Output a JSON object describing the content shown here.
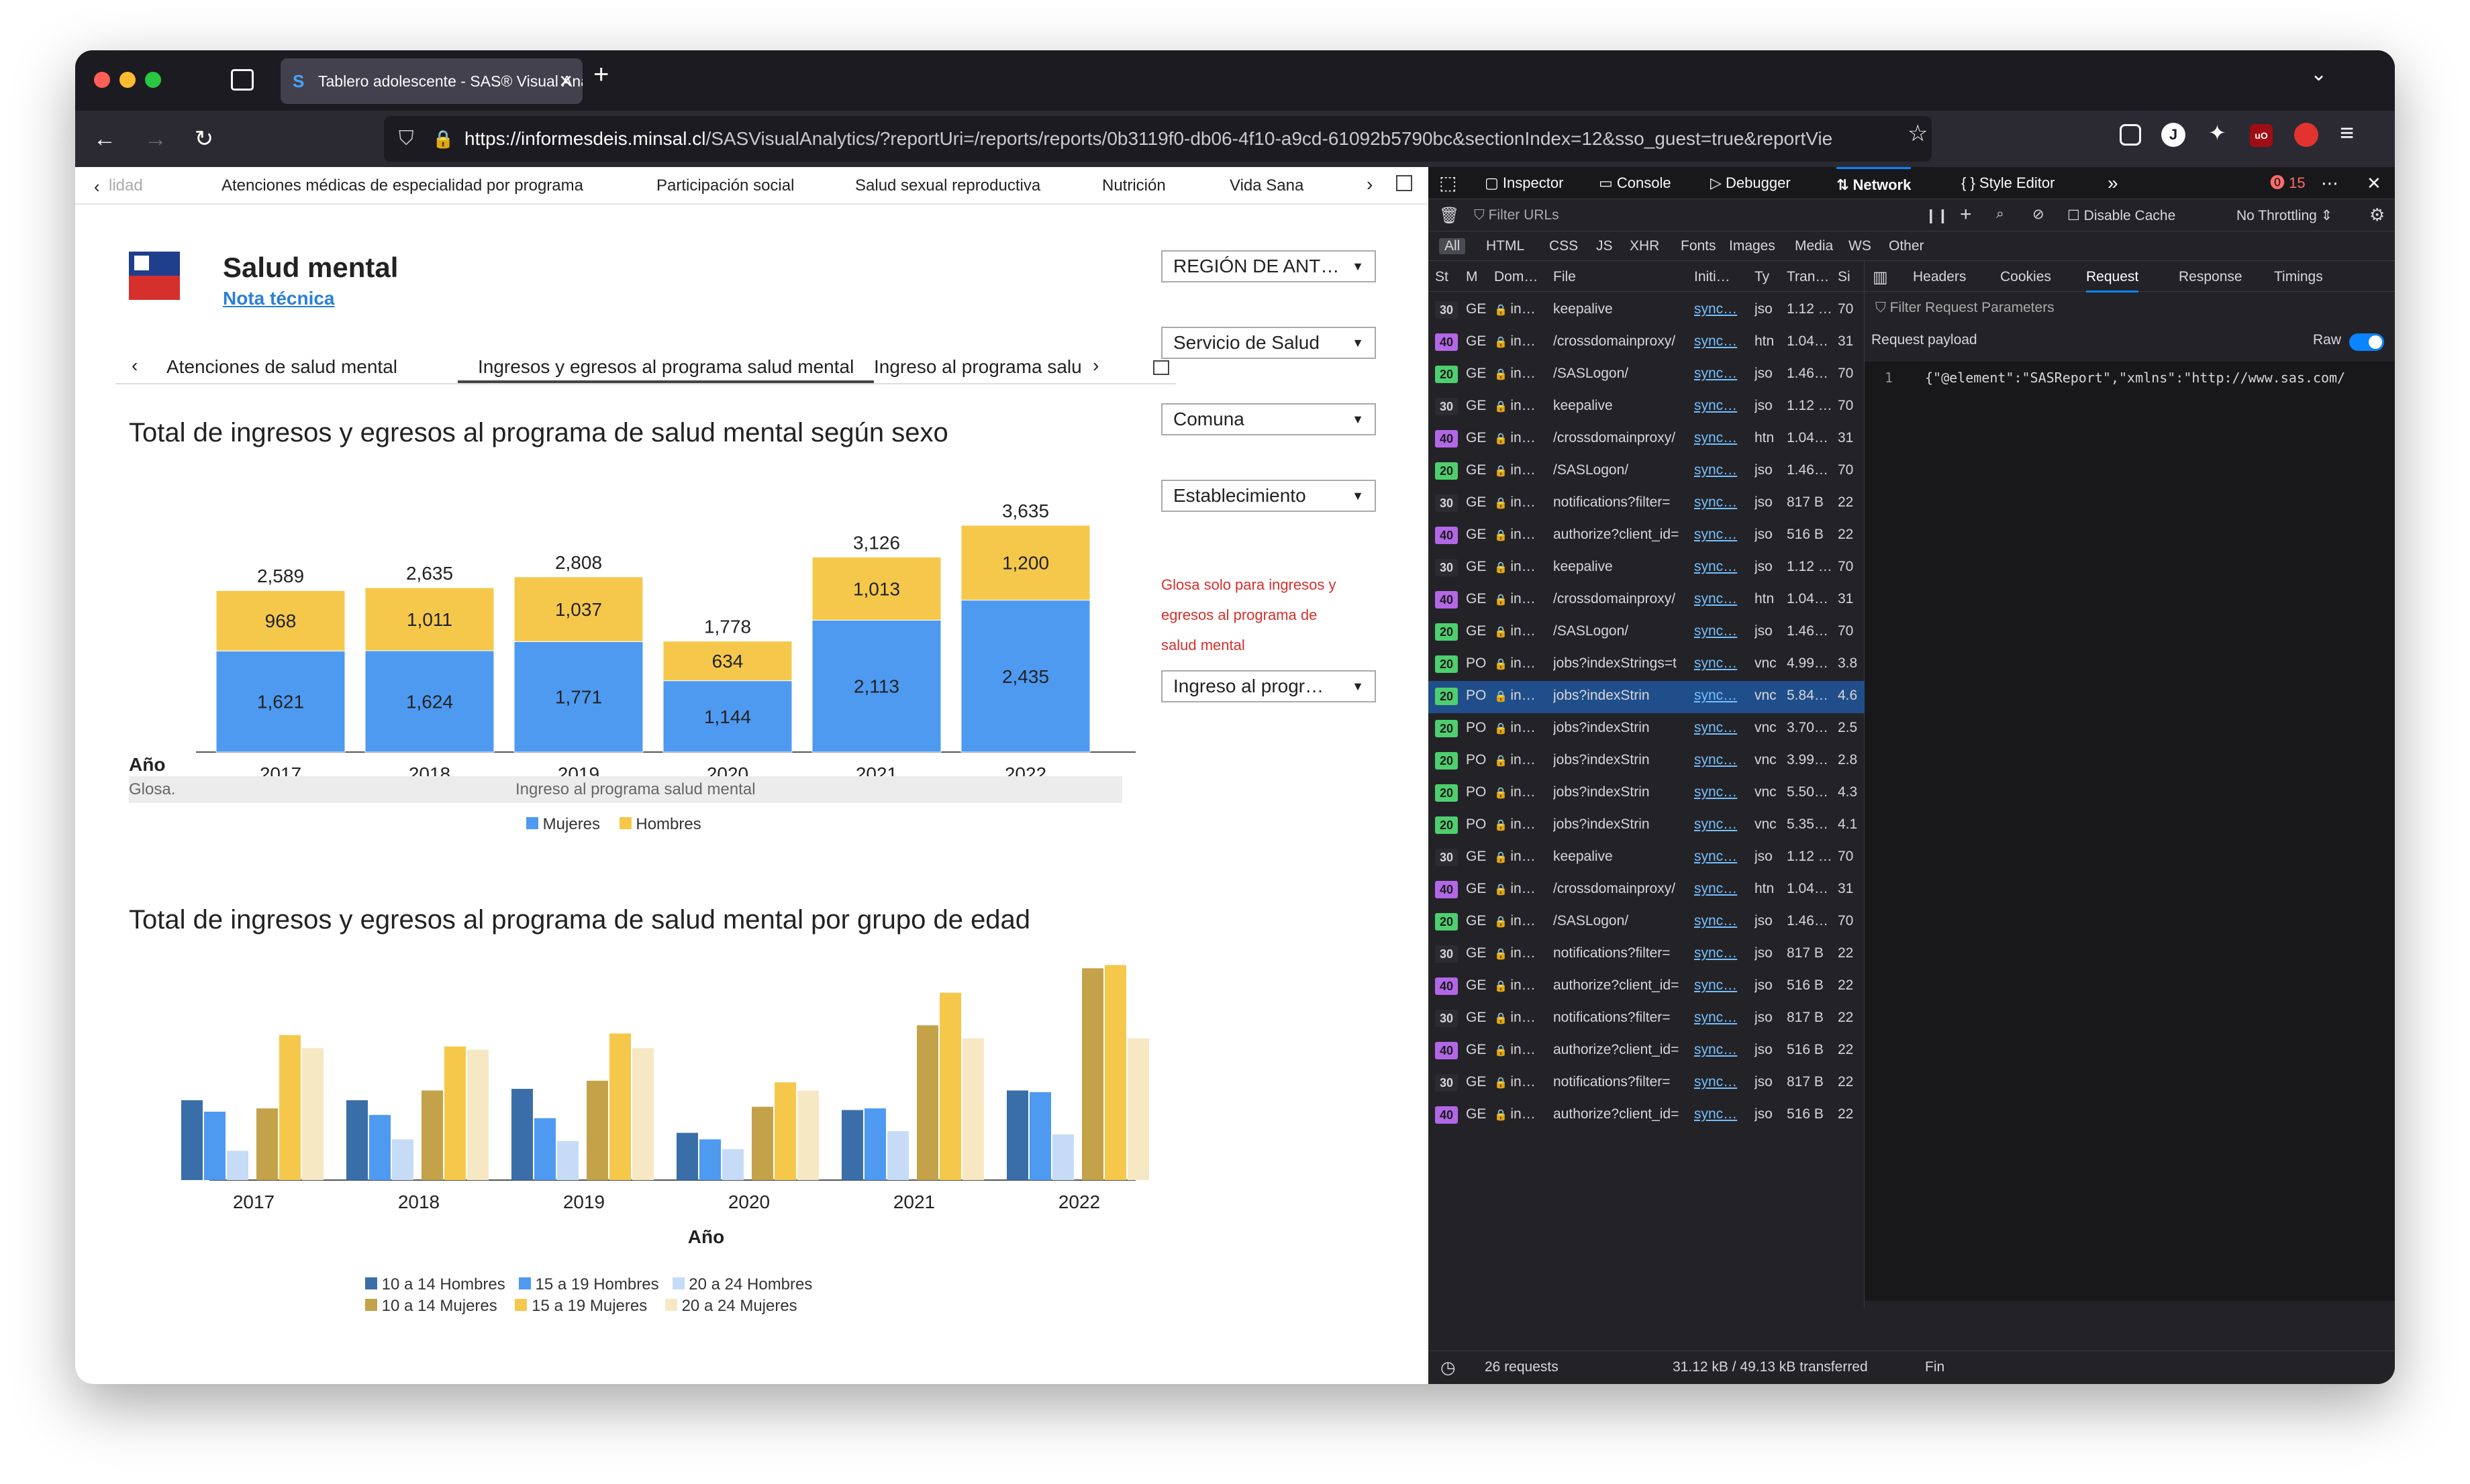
{
  "browser": {
    "tab_title": "Tablero adolescente - SAS® Visual Analytics",
    "url_host": "https://informesdeis.minsal.cl",
    "url_rest": "/SASVisualAnalytics/?reportUri=/reports/reports/0b3119f0-db06-4f10-a9cd-61092b5790bc&sectionIndex=12&sso_guest=true&reportVie"
  },
  "report_tabs": [
    "lidad",
    "Atenciones médicas de especialidad por programa",
    "Participación social",
    "Salud sexual reproductiva",
    "Nutrición",
    "Vida Sana"
  ],
  "header": {
    "title": "Salud mental",
    "link": "Nota técnica"
  },
  "sub_tabs": [
    "Atenciones de salud mental",
    "Ingresos y egresos al programa salud mental",
    "Ingreso al programa salu"
  ],
  "filters": [
    "REGIÓN DE ANT…",
    "Servicio de Salud",
    "Comuna",
    "Establecimiento",
    "Ingreso al progr…"
  ],
  "glosa_note": [
    "Glosa solo para ingresos y",
    "egresos al programa de",
    "salud mental"
  ],
  "glosa_row": {
    "label": "Glosa.",
    "value": "Ingreso al programa salud mental"
  },
  "colors": {
    "mujeres": "#4e9af1",
    "hombres": "#f5c84c",
    "h10": "#3a6ea8",
    "h15": "#4e9af1",
    "h20": "#c6dcf6",
    "m10": "#c4a24a",
    "m15": "#f5c84c",
    "m20": "#f7e8c4"
  },
  "chart_data": [
    {
      "type": "bar",
      "title": "Total de ingresos y egresos al programa de salud mental según sexo",
      "xlabel": "Año",
      "categories": [
        "2017",
        "2018",
        "2019",
        "2020",
        "2021",
        "2022"
      ],
      "series": [
        {
          "name": "Mujeres",
          "values": [
            1621,
            1624,
            1771,
            1144,
            2113,
            2435
          ]
        },
        {
          "name": "Hombres",
          "values": [
            968,
            1011,
            1037,
            634,
            1013,
            1200
          ]
        }
      ],
      "totals": [
        2589,
        2635,
        2808,
        1778,
        3126,
        3635
      ],
      "value_labels": [
        [
          "1,621",
          "1,624",
          "1,771",
          "1,144",
          "2,113",
          "2,435"
        ],
        [
          "968",
          "1,011",
          "1,037",
          "634",
          "1,013",
          "1,200"
        ]
      ],
      "total_labels": [
        "2,589",
        "2,635",
        "2,808",
        "1,778",
        "3,126",
        "3,635"
      ],
      "ylim": [
        0,
        4000
      ],
      "legend": "bottom"
    },
    {
      "type": "bar",
      "title": "Total de ingresos y egresos al programa de salud mental por grupo de edad",
      "xlabel": "Año",
      "categories": [
        "2017",
        "2018",
        "2019",
        "2020",
        "2021",
        "2022"
      ],
      "series": [
        {
          "name": "10 a 14 Hombres",
          "values": [
            490,
            490,
            560,
            290,
            430,
            550
          ]
        },
        {
          "name": "10 a 14 Mujeres",
          "values": [
            440,
            550,
            610,
            450,
            950,
            1300
          ]
        },
        {
          "name": "15 a 19 Hombres",
          "values": [
            420,
            400,
            380,
            250,
            440,
            540
          ]
        },
        {
          "name": "15 a 19 Mujeres",
          "values": [
            890,
            820,
            900,
            600,
            1150,
            1320
          ]
        },
        {
          "name": "20 a 24 Hombres",
          "values": [
            180,
            250,
            240,
            190,
            300,
            280
          ]
        },
        {
          "name": "20 a 24 Mujeres",
          "values": [
            810,
            800,
            810,
            550,
            870,
            870
          ]
        }
      ],
      "ylim": [
        0,
        1400
      ],
      "legend": "bottom"
    }
  ],
  "devtools": {
    "tabs": [
      "Inspector",
      "Console",
      "Debugger",
      "Network",
      "Style Editor"
    ],
    "error_count": "15",
    "filter_placeholder": "Filter URLs",
    "disable_cache": "Disable Cache",
    "throttling": "No Throttling ⇕",
    "type_filters": [
      "All",
      "HTML",
      "CSS",
      "JS",
      "XHR",
      "Fonts",
      "Images",
      "Media",
      "WS",
      "Other"
    ],
    "columns": [
      "St",
      "M",
      "Dom…",
      "File",
      "Initi…",
      "Ty",
      "Tran…",
      "Si"
    ],
    "rows": [
      {
        "st": "30",
        "m": "GE",
        "file": "keepalive",
        "init": "sync…",
        "ty": "jso",
        "tr": "1.12 …",
        "si": "70"
      },
      {
        "st": "40",
        "m": "GE",
        "file": "/crossdomainproxy/",
        "init": "sync…",
        "ty": "htn",
        "tr": "1.04…",
        "si": "31"
      },
      {
        "st": "20",
        "m": "GE",
        "file": "/SASLogon/",
        "init": "sync…",
        "ty": "jso",
        "tr": "1.46…",
        "si": "70"
      },
      {
        "st": "30",
        "m": "GE",
        "file": "keepalive",
        "init": "sync…",
        "ty": "jso",
        "tr": "1.12 …",
        "si": "70"
      },
      {
        "st": "40",
        "m": "GE",
        "file": "/crossdomainproxy/",
        "init": "sync…",
        "ty": "htn",
        "tr": "1.04…",
        "si": "31"
      },
      {
        "st": "20",
        "m": "GE",
        "file": "/SASLogon/",
        "init": "sync…",
        "ty": "jso",
        "tr": "1.46…",
        "si": "70"
      },
      {
        "st": "30",
        "m": "GE",
        "file": "notifications?filter=",
        "init": "sync…",
        "ty": "jso",
        "tr": "817 B",
        "si": "22"
      },
      {
        "st": "40",
        "m": "GE",
        "file": "authorize?client_id=",
        "init": "sync…",
        "ty": "jso",
        "tr": "516 B",
        "si": "22"
      },
      {
        "st": "30",
        "m": "GE",
        "file": "keepalive",
        "init": "sync…",
        "ty": "jso",
        "tr": "1.12 …",
        "si": "70"
      },
      {
        "st": "40",
        "m": "GE",
        "file": "/crossdomainproxy/",
        "init": "sync…",
        "ty": "htn",
        "tr": "1.04…",
        "si": "31"
      },
      {
        "st": "20",
        "m": "GE",
        "file": "/SASLogon/",
        "init": "sync…",
        "ty": "jso",
        "tr": "1.46…",
        "si": "70"
      },
      {
        "st": "20",
        "m": "PO",
        "file": "jobs?indexStrings=t",
        "init": "sync…",
        "ty": "vnc",
        "tr": "4.99…",
        "si": "3.8"
      },
      {
        "st": "20",
        "m": "PO",
        "file": "jobs?indexStrin",
        "init": "sync…",
        "ty": "vnc",
        "tr": "5.84…",
        "si": "4.6",
        "sel": true
      },
      {
        "st": "20",
        "m": "PO",
        "file": "jobs?indexStrin",
        "init": "sync…",
        "ty": "vnc",
        "tr": "3.70…",
        "si": "2.5"
      },
      {
        "st": "20",
        "m": "PO",
        "file": "jobs?indexStrin",
        "init": "sync…",
        "ty": "vnc",
        "tr": "3.99…",
        "si": "2.8"
      },
      {
        "st": "20",
        "m": "PO",
        "file": "jobs?indexStrin",
        "init": "sync…",
        "ty": "vnc",
        "tr": "5.50…",
        "si": "4.3"
      },
      {
        "st": "20",
        "m": "PO",
        "file": "jobs?indexStrin",
        "init": "sync…",
        "ty": "vnc",
        "tr": "5.35…",
        "si": "4.1"
      },
      {
        "st": "30",
        "m": "GE",
        "file": "keepalive",
        "init": "sync…",
        "ty": "jso",
        "tr": "1.12 …",
        "si": "70"
      },
      {
        "st": "40",
        "m": "GE",
        "file": "/crossdomainproxy/",
        "init": "sync…",
        "ty": "htn",
        "tr": "1.04…",
        "si": "31"
      },
      {
        "st": "20",
        "m": "GE",
        "file": "/SASLogon/",
        "init": "sync…",
        "ty": "jso",
        "tr": "1.46…",
        "si": "70"
      },
      {
        "st": "30",
        "m": "GE",
        "file": "notifications?filter=",
        "init": "sync…",
        "ty": "jso",
        "tr": "817 B",
        "si": "22"
      },
      {
        "st": "40",
        "m": "GE",
        "file": "authorize?client_id=",
        "init": "sync…",
        "ty": "jso",
        "tr": "516 B",
        "si": "22"
      },
      {
        "st": "30",
        "m": "GE",
        "file": "notifications?filter=",
        "init": "sync…",
        "ty": "jso",
        "tr": "817 B",
        "si": "22"
      },
      {
        "st": "40",
        "m": "GE",
        "file": "authorize?client_id=",
        "init": "sync…",
        "ty": "jso",
        "tr": "516 B",
        "si": "22"
      },
      {
        "st": "30",
        "m": "GE",
        "file": "notifications?filter=",
        "init": "sync…",
        "ty": "jso",
        "tr": "817 B",
        "si": "22"
      },
      {
        "st": "40",
        "m": "GE",
        "file": "authorize?client_id=",
        "init": "sync…",
        "ty": "jso",
        "tr": "516 B",
        "si": "22"
      }
    ],
    "detail_tabs": [
      "Headers",
      "Cookies",
      "Request",
      "Response",
      "Timings"
    ],
    "filter_params": "Filter Request Parameters",
    "payload_label": "Request payload",
    "raw_label": "Raw",
    "payload_line_no": "1",
    "payload_text": "{\"@element\":\"SASReport\",\"xmlns\":\"http://www.sas.com/",
    "status_requests": "26 requests",
    "status_transfer": "31.12 kB / 49.13 kB transferred",
    "status_fin": "Fin"
  }
}
